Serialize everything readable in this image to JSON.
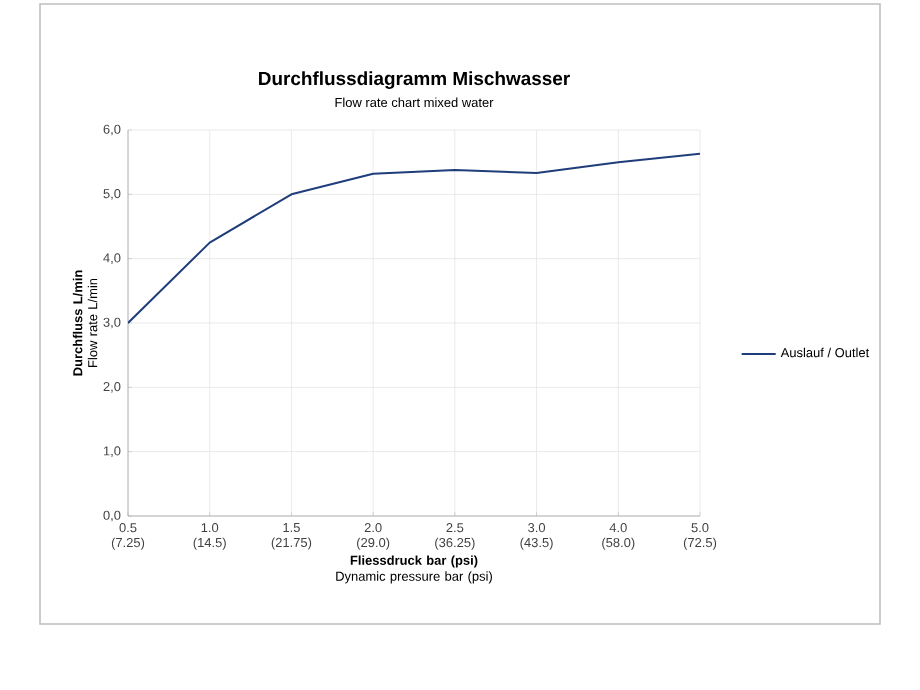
{
  "chart_data": {
    "type": "line",
    "title": "Durchflussdiagramm Mischwasser",
    "subtitle": "Flow rate chart mixed water",
    "xlabel": "**Fliessdruck bar (psi)** Dynamic pressure bar (psi)",
    "ylabel": "**Durchfluss L/min** Flow rate L/min",
    "categories": [
      "0.5 (7.25)",
      "1.0 (14.5)",
      "1.5 (21.75)",
      "2.0 (29.0)",
      "2.5 (36.25)",
      "3.0 (43.5)",
      "4.0 (58.0)",
      "5.0 (72.5)"
    ],
    "series": [
      {
        "name": "Auslauf / Outlet",
        "color": "#1f3d7a",
        "values": [
          3.0,
          4.25,
          5.0,
          5.32,
          5.38,
          5.33,
          5.5,
          5.63
        ]
      }
    ],
    "ylim": [
      0,
      6
    ],
    "yticks": [
      {
        "value": 0,
        "label": "0,0"
      },
      {
        "value": 1,
        "label": "1,0"
      },
      {
        "value": 2,
        "label": "2,0"
      },
      {
        "value": 3,
        "label": "3,0"
      },
      {
        "value": 4,
        "label": "4,0"
      },
      {
        "value": 5,
        "label": "5,0"
      },
      {
        "value": 6,
        "label": "6,0"
      }
    ],
    "grid": true,
    "legend": "right",
    "marker": "none",
    "line_style": "solid"
  }
}
